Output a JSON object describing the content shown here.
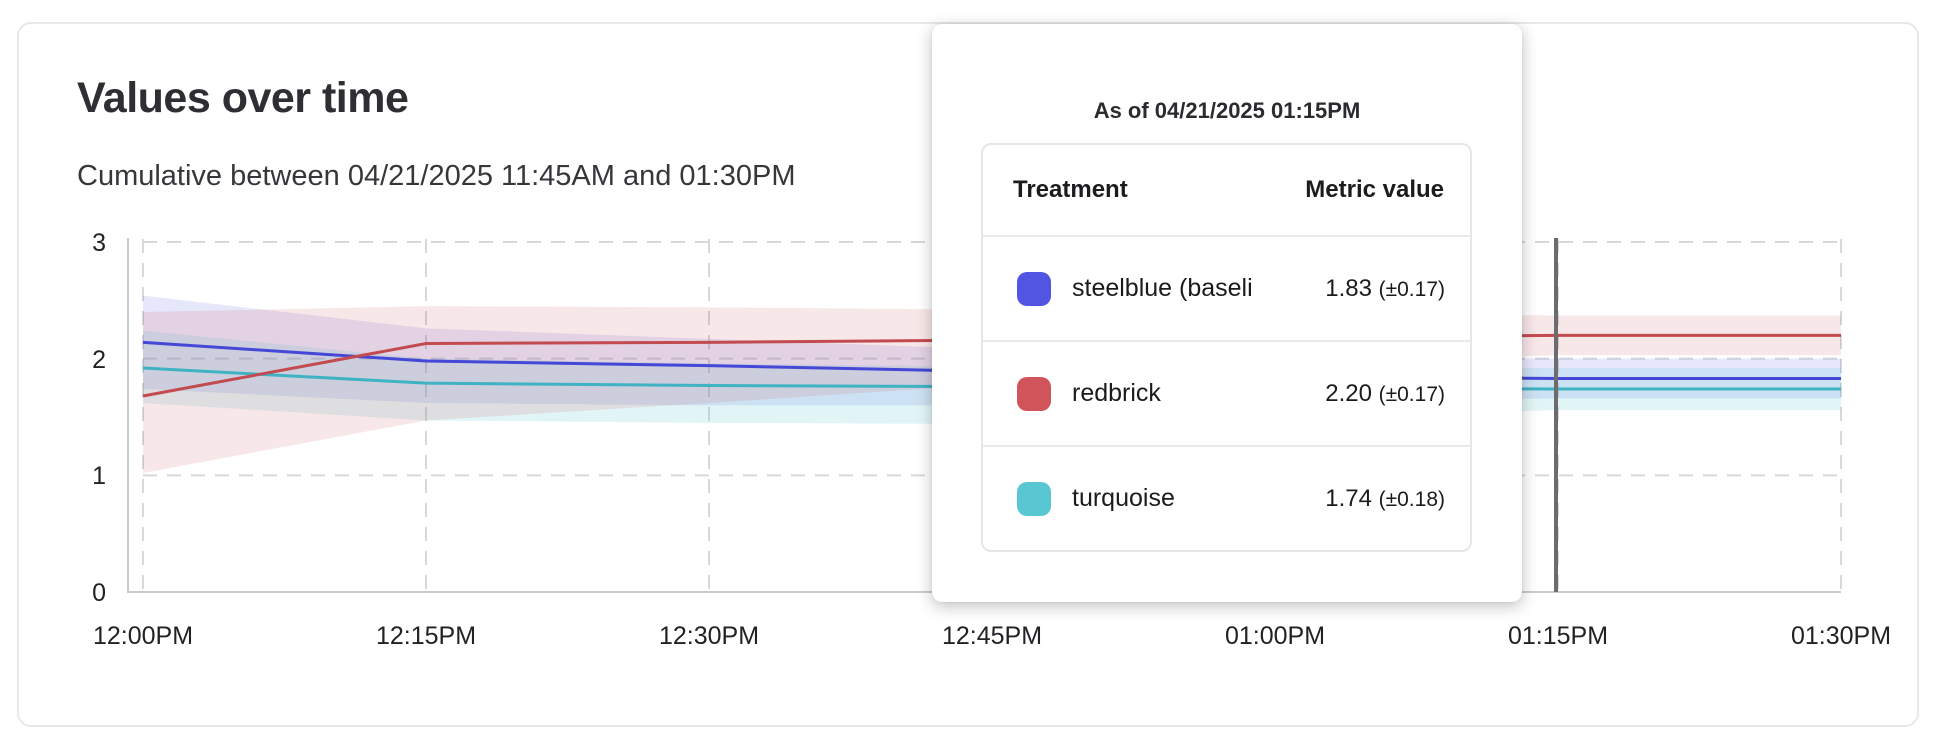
{
  "card": {
    "title": "Values over time",
    "subtitle": "Cumulative between 04/21/2025 11:45AM and 01:30PM"
  },
  "tooltip": {
    "title": "As of 04/21/2025 01:15PM",
    "columns": {
      "treatment": "Treatment",
      "metric": "Metric value"
    },
    "rows": [
      {
        "swatch_color": "#5155e2",
        "label": "steelblue  (baseli",
        "value": "1.83",
        "uncertainty": "(±0.17)"
      },
      {
        "swatch_color": "#d0545a",
        "label": "redbrick",
        "value": "2.20",
        "uncertainty": "(±0.17)"
      },
      {
        "swatch_color": "#58c7d2",
        "label": "turquoise",
        "value": "1.74",
        "uncertainty": "(±0.18)"
      }
    ]
  },
  "chart_data": {
    "type": "line",
    "title": "Values over time",
    "subtitle": "Cumulative between 04/21/2025 11:45AM and 01:30PM",
    "x_ticks": [
      "12:00PM",
      "12:15PM",
      "12:30PM",
      "12:45PM",
      "01:00PM",
      "01:15PM",
      "01:30PM"
    ],
    "y_ticks": [
      "0",
      "1",
      "2",
      "3"
    ],
    "ylim": [
      0,
      3
    ],
    "grid": "dashed",
    "legend": "none",
    "hover_marker": {
      "x_tick": "01:15PM",
      "color": "#6c6c6e"
    },
    "series": [
      {
        "name": "steelblue",
        "line_color": "#4548d6",
        "band_color": "rgba(90,95,225,0.15)",
        "values": [
          2.14,
          1.98,
          1.94,
          1.89,
          1.85,
          1.83,
          1.83
        ],
        "band_upper": [
          2.54,
          2.26,
          2.17,
          2.08,
          2.02,
          2.0,
          2.0
        ],
        "band_lower": [
          1.74,
          1.62,
          1.6,
          1.6,
          1.62,
          1.66,
          1.66
        ]
      },
      {
        "name": "redbrick",
        "line_color": "#c24b50",
        "band_color": "rgba(208,83,89,0.14)",
        "values": [
          1.68,
          2.13,
          2.14,
          2.16,
          2.18,
          2.2,
          2.2
        ],
        "band_upper": [
          2.4,
          2.45,
          2.44,
          2.42,
          2.39,
          2.37,
          2.37
        ],
        "band_lower": [
          1.02,
          1.47,
          1.62,
          1.78,
          1.95,
          2.03,
          2.03
        ]
      },
      {
        "name": "turquoise",
        "line_color": "#3fb2c3",
        "band_color": "rgba(86,198,210,0.18)",
        "values": [
          1.92,
          1.79,
          1.77,
          1.76,
          1.75,
          1.74,
          1.74
        ],
        "band_upper": [
          2.24,
          2.0,
          1.96,
          1.93,
          1.92,
          1.92,
          1.92
        ],
        "band_lower": [
          1.62,
          1.47,
          1.45,
          1.44,
          1.48,
          1.56,
          1.56
        ]
      }
    ]
  }
}
